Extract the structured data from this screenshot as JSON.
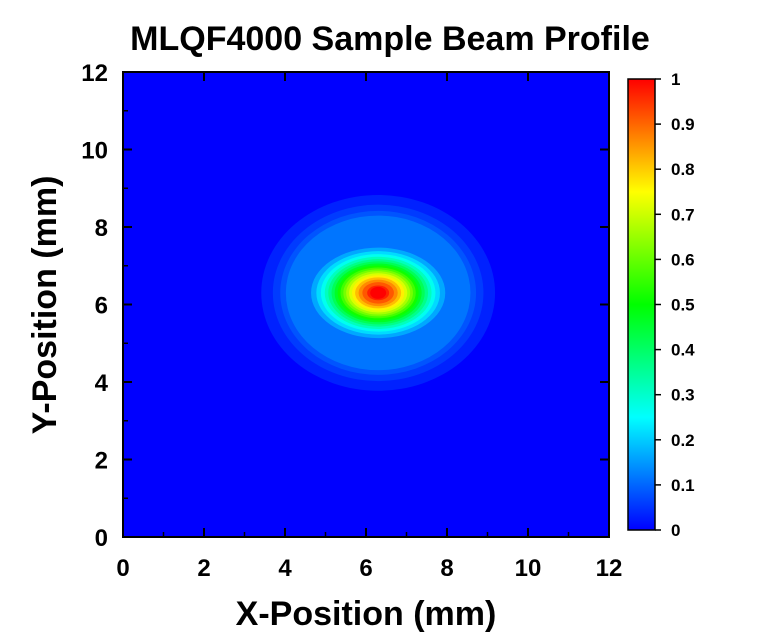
{
  "chart_data": {
    "type": "heatmap",
    "title": "MLQF4000 Sample Beam Profile",
    "xlabel": "X-Position (mm)",
    "ylabel": "Y-Position (mm)",
    "xlim": [
      0,
      12
    ],
    "ylim": [
      0,
      12
    ],
    "x_ticks": [
      "0",
      "2",
      "4",
      "6",
      "8",
      "10",
      "12"
    ],
    "y_ticks": [
      "0",
      "2",
      "4",
      "6",
      "8",
      "10",
      "12"
    ],
    "peak": {
      "x": 6.3,
      "y": 6.3,
      "value": 1.0
    },
    "beam_sigma_x_mm": 0.85,
    "beam_sigma_y_mm": 0.6,
    "colorbar": {
      "range": [
        0,
        1
      ],
      "ticks": [
        "0",
        "0.1",
        "0.2",
        "0.3",
        "0.4",
        "0.5",
        "0.6",
        "0.7",
        "0.8",
        "0.9",
        "1"
      ],
      "colormap": [
        "#0000ff",
        "#00ffff",
        "#00ff00",
        "#ffff00",
        "#ff0000"
      ]
    }
  }
}
